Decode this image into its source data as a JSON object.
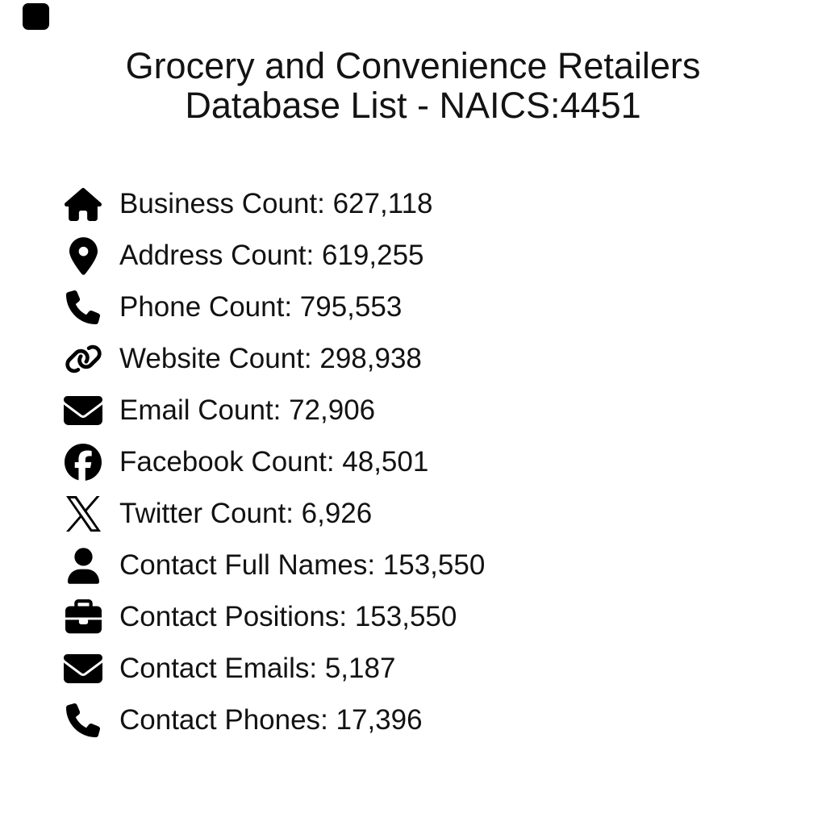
{
  "title": {
    "line1": "Grocery and Convenience Retailers",
    "line2": "Database List - NAICS:4451"
  },
  "separator": ": ",
  "stats": [
    {
      "icon": "house-icon",
      "label": "Business Count",
      "value": "627,118"
    },
    {
      "icon": "location-pin-icon",
      "label": "Address Count",
      "value": "619,255"
    },
    {
      "icon": "phone-icon",
      "label": "Phone Count",
      "value": "795,553"
    },
    {
      "icon": "link-icon",
      "label": "Website Count",
      "value": "298,938"
    },
    {
      "icon": "envelope-icon",
      "label": "Email Count",
      "value": "72,906"
    },
    {
      "icon": "facebook-icon",
      "label": "Facebook Count",
      "value": "48,501"
    },
    {
      "icon": "x-twitter-icon",
      "label": "Twitter Count",
      "value": "6,926"
    },
    {
      "icon": "user-icon",
      "label": "Contact Full Names",
      "value": "153,550"
    },
    {
      "icon": "briefcase-icon",
      "label": "Contact Positions",
      "value": "153,550"
    },
    {
      "icon": "envelope-icon",
      "label": "Contact Emails",
      "value": "5,187"
    },
    {
      "icon": "phone-icon",
      "label": "Contact Phones",
      "value": "17,396"
    }
  ],
  "colors": {
    "background": "#ffffff",
    "text": "#121212",
    "icon": "#000000",
    "corner_mark": "#000000"
  }
}
